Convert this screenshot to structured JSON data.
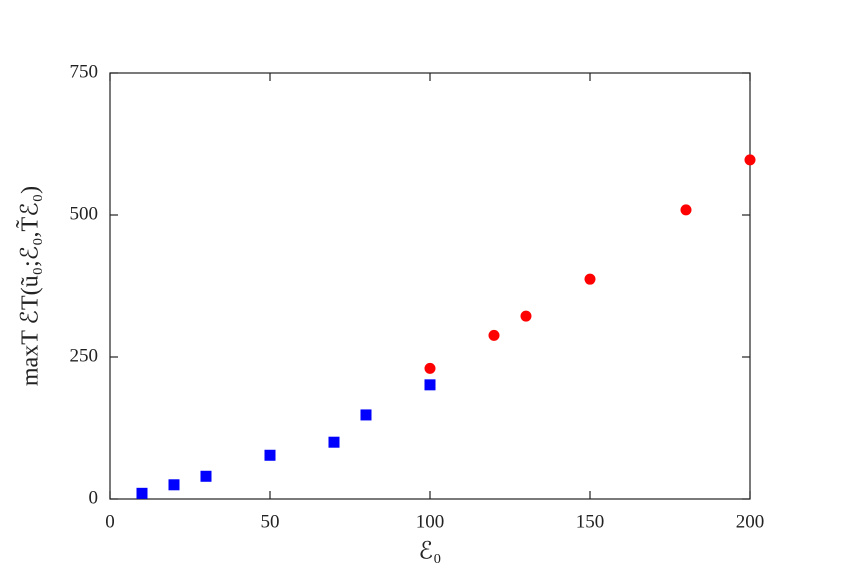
{
  "chart_data": {
    "type": "scatter",
    "x_label": "ℰ₀",
    "y_label": "maxT ℰT(ũ₀;ℰ₀,T̃ℰ₀)",
    "xlim": [
      0,
      200
    ],
    "xticks": [
      0,
      50,
      100,
      150,
      200
    ],
    "ylim": [
      0,
      750
    ],
    "yticks": [
      0,
      250,
      500,
      750
    ],
    "series": [
      {
        "color": "#0000ff",
        "marker": "square",
        "x": [
          10,
          20,
          30,
          50,
          70,
          80,
          100
        ],
        "values": [
          10,
          25,
          40,
          77,
          100,
          148,
          201
        ]
      },
      {
        "color": "#ff0000",
        "marker": "circle",
        "x": [
          100,
          120,
          130,
          150,
          180,
          200
        ],
        "values": [
          230,
          288,
          322,
          387,
          509,
          597
        ]
      }
    ]
  }
}
